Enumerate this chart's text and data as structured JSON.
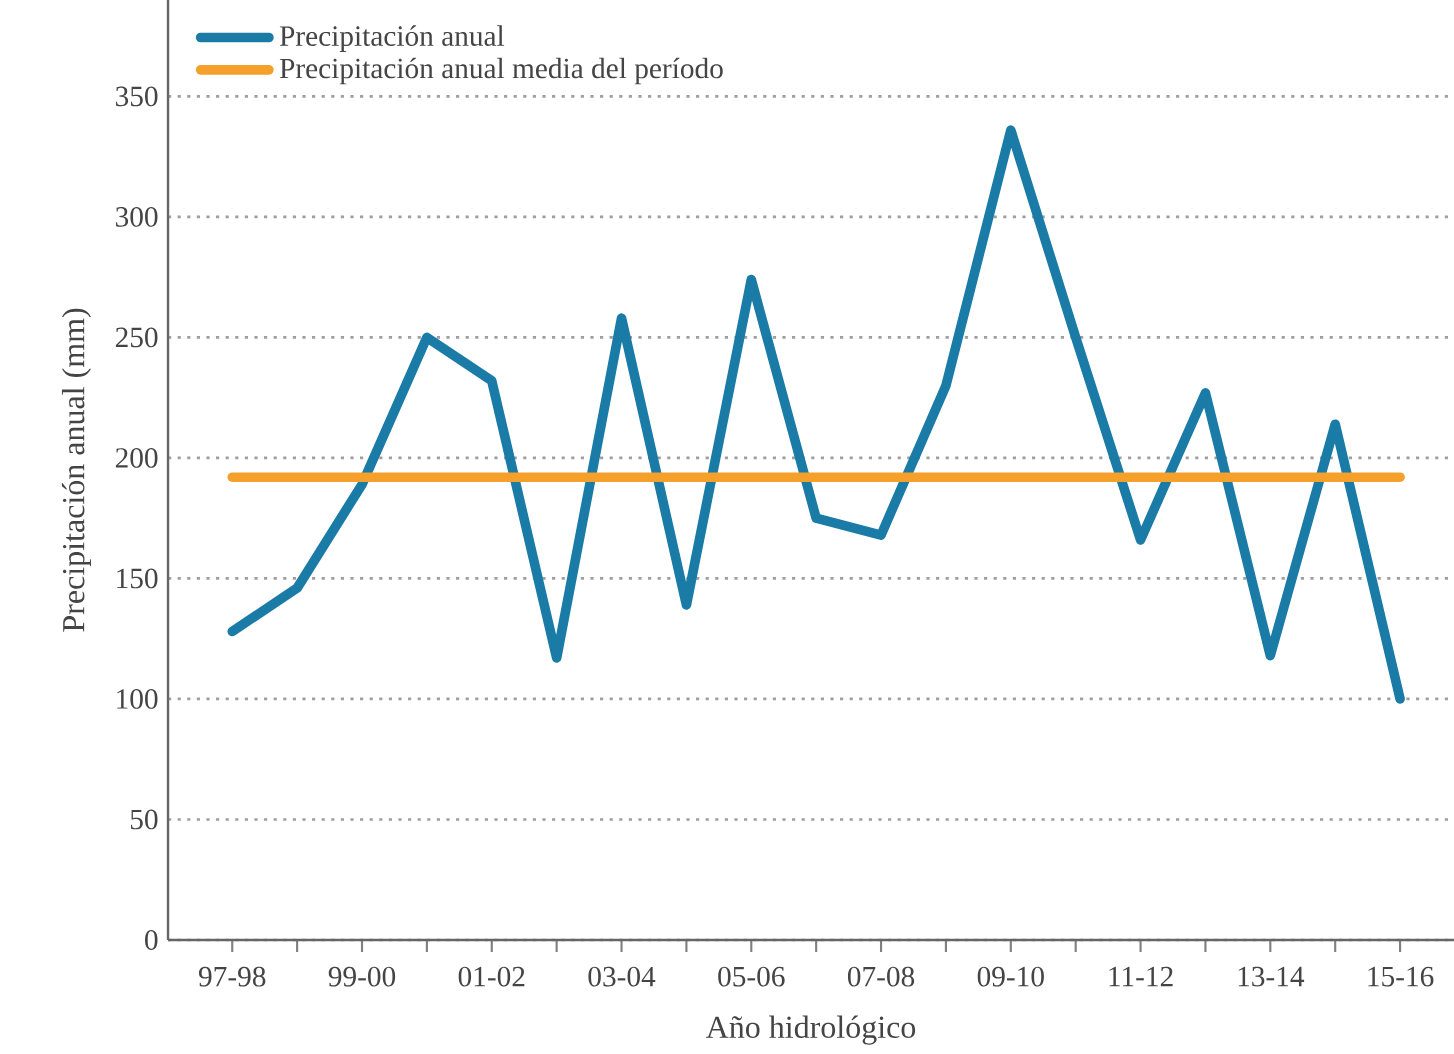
{
  "chart_data": {
    "type": "line",
    "xlabel": "Año hidrológico",
    "ylabel": "Precipitación anual (mm)",
    "categories": [
      "97-98",
      null,
      "99-00",
      null,
      "01-02",
      null,
      "03-04",
      null,
      "05-06",
      null,
      "07-08",
      null,
      "09-10",
      null,
      "11-12",
      null,
      "13-14",
      null,
      "15-16"
    ],
    "series": [
      {
        "name": "Precipitación anual",
        "color": "#1a7ba6",
        "values": [
          128,
          146,
          189,
          250,
          232,
          117,
          258,
          139,
          274,
          175,
          168,
          230,
          336,
          250,
          166,
          227,
          118,
          214,
          100
        ]
      }
    ],
    "ref_lines": [
      {
        "axis": "y",
        "value": 192,
        "label": "Precipitación anual media del período",
        "color": "#f5a02a",
        "line_style": "solid"
      }
    ],
    "ylim": [
      0,
      390
    ],
    "yticks": [
      0,
      50,
      100,
      150,
      200,
      250,
      300,
      350
    ],
    "grid": "y",
    "legend": "top left",
    "marker": "none",
    "line_style": "solid"
  }
}
